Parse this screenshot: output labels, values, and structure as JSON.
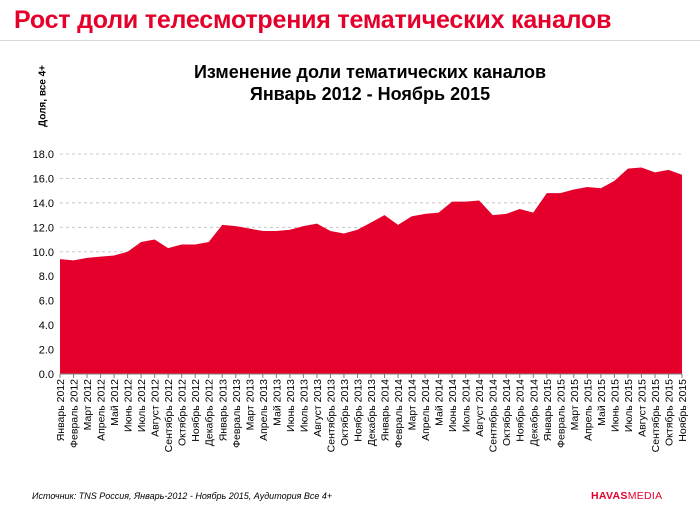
{
  "slide": {
    "title": "Рост доли телесмотрения тематических каналов",
    "source": "Источник:  TNS Россия, Январь-2012  - Ноябрь 2015, Аудитория  Все 4+",
    "logo_part1": "HAVAS",
    "logo_part2": "MEDIA"
  },
  "chart_data": {
    "type": "area",
    "title_line1": "Изменение доли тематических каналов",
    "title_line2": "Январь 2012 - Ноябрь 2015",
    "ylabel": "Доля, все 4+",
    "xlabel": "",
    "ylim": [
      0,
      18
    ],
    "yticks": [
      "0.0",
      "2.0",
      "4.0",
      "6.0",
      "8.0",
      "10.0",
      "12.0",
      "14.0",
      "16.0",
      "18.0"
    ],
    "grid": true,
    "color": "#e4002b",
    "categories": [
      "Январь 2012",
      "Февраль 2012",
      "Март 2012",
      "Апрель 2012",
      "Май 2012",
      "Июнь 2012",
      "Июль 2012",
      "Август 2012",
      "Сентябрь 2012",
      "Октябрь 2012",
      "Ноябрь 2012",
      "Декабрь 2012",
      "Январь 2013",
      "Февраль 2013",
      "Март 2013",
      "Апрель 2013",
      "Май 2013",
      "Июнь 2013",
      "Июль 2013",
      "Август 2013",
      "Сентябрь 2013",
      "Октябрь 2013",
      "Ноябрь 2013",
      "Декабрь 2013",
      "Январь 2014",
      "Февраль 2014",
      "Март 2014",
      "Апрель 2014",
      "Май 2014",
      "Июнь 2014",
      "Июль 2014",
      "Август 2014",
      "Сентябрь 2014",
      "Октябрь 2014",
      "Ноябрь 2014",
      "Декабрь 2014",
      "Январь 2015",
      "Февраль 2015",
      "Март 2015",
      "Апрель 2015",
      "Май 2015",
      "Июнь 2015",
      "Июль 2015",
      "Август 2015",
      "Сентябрь 2015",
      "Октябрь 2015",
      "Ноябрь 2015"
    ],
    "values": [
      9.4,
      9.3,
      9.5,
      9.6,
      9.7,
      10.0,
      10.8,
      11.0,
      10.3,
      10.6,
      10.6,
      10.8,
      12.2,
      12.1,
      11.9,
      11.7,
      11.7,
      11.8,
      12.1,
      12.3,
      11.7,
      11.5,
      11.8,
      12.4,
      13.0,
      12.2,
      12.9,
      13.1,
      13.2,
      14.1,
      14.1,
      14.2,
      13.0,
      13.1,
      13.5,
      13.2,
      14.8,
      14.8,
      15.1,
      15.3,
      15.2,
      15.8,
      16.8,
      16.9,
      16.5,
      16.7,
      16.3
    ]
  }
}
